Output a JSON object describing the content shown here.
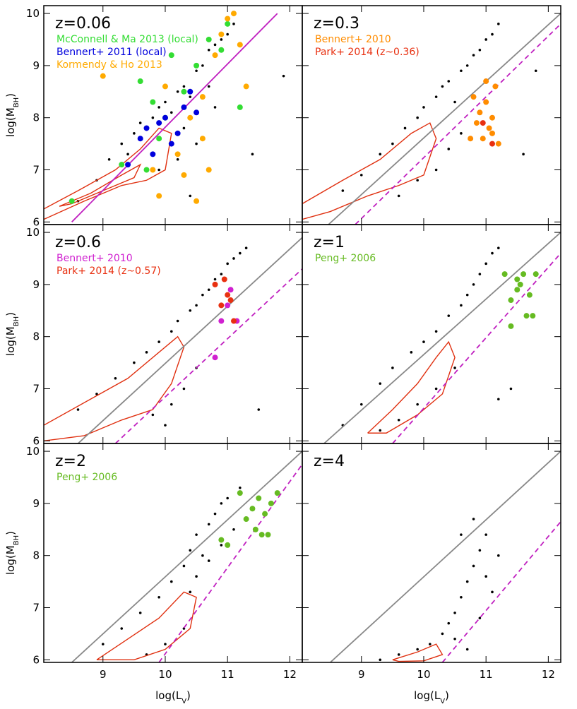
{
  "chart_data": [
    {
      "type": "scatter",
      "label": "z=0.06",
      "xlim": [
        8.05,
        12.2
      ],
      "ylim": [
        5.95,
        10.15
      ],
      "xticks": [
        9,
        10,
        11,
        12
      ],
      "yticks": [
        6,
        7,
        8,
        9,
        10
      ],
      "ylabel": [
        "log(M",
        "BH",
        ")"
      ],
      "series": [
        {
          "style": "dot",
          "color": "#000000",
          "x": [
            8.6,
            8.9,
            9.1,
            9.3,
            9.5,
            9.6,
            9.8,
            9.9,
            10.0,
            10.1,
            10.2,
            10.3,
            10.4,
            10.5,
            10.6,
            10.7,
            10.8,
            10.9,
            11.0,
            11.1,
            9.9,
            10.2,
            10.5,
            10.8,
            11.4,
            11.9,
            10.7,
            10.3,
            9.4,
            10.4
          ],
          "y": [
            6.4,
            6.8,
            7.2,
            7.5,
            7.7,
            7.9,
            8.0,
            8.2,
            8.3,
            8.1,
            8.5,
            8.6,
            8.4,
            8.9,
            9.0,
            9.3,
            9.4,
            9.5,
            9.6,
            9.8,
            7.0,
            7.2,
            7.5,
            8.2,
            7.3,
            8.8,
            8.6,
            7.8,
            7.3,
            6.5
          ]
        },
        {
          "style": "contour",
          "color": "#e03010",
          "x": [
            8.05,
            8.6,
            9.2,
            9.6,
            9.9,
            10.1,
            10.0,
            9.7,
            9.3,
            8.7,
            8.05
          ],
          "y": [
            6.25,
            6.6,
            7.0,
            7.4,
            7.8,
            7.7,
            7.0,
            6.8,
            6.7,
            6.4,
            6.05
          ]
        },
        {
          "style": "contour",
          "color": "#e03010",
          "x": [
            8.3,
            8.8,
            9.3,
            9.6,
            9.5,
            9.0,
            8.5,
            8.3
          ],
          "y": [
            6.3,
            6.55,
            6.9,
            7.1,
            6.85,
            6.6,
            6.35,
            6.3
          ]
        },
        {
          "style": "line",
          "color": "#c020c0",
          "x": [
            8.5,
            11.8
          ],
          "y": [
            6.0,
            10.0
          ]
        },
        {
          "style": "circle",
          "name": "McConnell & Ma 2013 (local)",
          "color": "#33dd33",
          "x": [
            8.5,
            9.3,
            9.6,
            9.7,
            9.8,
            10.0,
            10.1,
            10.3,
            10.5,
            10.7,
            10.9,
            11.0,
            11.2,
            9.9
          ],
          "y": [
            6.4,
            7.1,
            8.7,
            7.0,
            8.3,
            8.0,
            9.2,
            8.5,
            9.0,
            9.5,
            9.3,
            9.8,
            8.2,
            7.6
          ]
        },
        {
          "style": "circle",
          "name": "Bennert+ 2011 (local)",
          "color": "#0000dd",
          "x": [
            9.4,
            9.6,
            9.7,
            9.8,
            9.9,
            10.0,
            10.1,
            10.2,
            10.3,
            10.4,
            10.5
          ],
          "y": [
            7.1,
            7.6,
            7.8,
            7.3,
            7.9,
            8.0,
            7.5,
            7.7,
            8.2,
            8.5,
            8.1
          ]
        },
        {
          "style": "circle",
          "name": "Kormendy & Ho 2013",
          "color": "#ffaa00",
          "x": [
            9.0,
            9.8,
            10.0,
            10.2,
            10.4,
            10.6,
            10.8,
            10.9,
            11.0,
            11.1,
            11.2,
            10.5,
            10.7,
            10.3,
            9.9,
            10.6,
            11.3
          ],
          "y": [
            8.8,
            7.0,
            8.6,
            7.3,
            8.0,
            8.4,
            9.2,
            9.6,
            9.9,
            10.0,
            9.4,
            6.4,
            7.0,
            6.9,
            6.5,
            7.6,
            8.6
          ]
        }
      ]
    },
    {
      "type": "scatter",
      "label": "z=0.3",
      "xlim": [
        8.05,
        12.2
      ],
      "ylim": [
        5.95,
        10.15
      ],
      "xticks": [
        9,
        10,
        11,
        12
      ],
      "yticks": [
        6,
        7,
        8,
        9,
        10
      ],
      "series": [
        {
          "style": "dot",
          "color": "#000000",
          "x": [
            8.7,
            9.0,
            9.3,
            9.5,
            9.7,
            9.9,
            10.0,
            10.2,
            10.3,
            10.4,
            10.5,
            10.6,
            10.7,
            10.8,
            10.9,
            11.0,
            11.1,
            11.2,
            9.6,
            9.9,
            10.2,
            10.4,
            10.6,
            11.6,
            11.8,
            10.9
          ],
          "y": [
            6.6,
            6.9,
            7.3,
            7.5,
            7.8,
            8.0,
            8.2,
            8.4,
            8.6,
            8.7,
            8.3,
            8.9,
            9.0,
            9.2,
            9.3,
            9.5,
            9.6,
            9.8,
            6.5,
            6.8,
            7.0,
            7.4,
            7.7,
            7.3,
            8.9,
            8.1
          ]
        },
        {
          "style": "contour",
          "color": "#e03010",
          "x": [
            8.05,
            8.7,
            9.3,
            9.8,
            10.1,
            10.2,
            10.0,
            9.6,
            9.1,
            8.5,
            8.05
          ],
          "y": [
            6.35,
            6.8,
            7.2,
            7.7,
            7.9,
            7.6,
            6.9,
            6.7,
            6.5,
            6.2,
            6.05
          ]
        },
        {
          "style": "line",
          "color": "#888888",
          "x": [
            8.47,
            12.2
          ],
          "y": [
            5.95,
            10.0
          ]
        },
        {
          "style": "dashed",
          "color": "#c020c0",
          "x": [
            8.9,
            12.2
          ],
          "y": [
            5.95,
            9.8
          ]
        },
        {
          "style": "circle",
          "name": "Bennert+ 2010",
          "color": "#ff8c00",
          "x": [
            10.8,
            10.85,
            10.9,
            10.95,
            11.0,
            11.05,
            11.1,
            11.15,
            11.2,
            10.75,
            11.0,
            11.1
          ],
          "y": [
            8.4,
            7.9,
            8.1,
            7.6,
            8.3,
            7.8,
            8.0,
            8.6,
            7.5,
            7.6,
            8.7,
            7.7
          ]
        },
        {
          "style": "circle",
          "name": "Park+ 2014 (z~0.36)",
          "color": "#e83010",
          "x": [
            10.95,
            11.1
          ],
          "y": [
            7.9,
            7.5
          ]
        }
      ]
    },
    {
      "type": "scatter",
      "label": "z=0.6",
      "xlim": [
        8.05,
        12.2
      ],
      "ylim": [
        5.95,
        10.15
      ],
      "xticks": [
        9,
        10,
        11,
        12
      ],
      "yticks": [
        6,
        7,
        8,
        9,
        10
      ],
      "ylabel": [
        "log(M",
        "BH",
        ")"
      ],
      "series": [
        {
          "style": "dot",
          "color": "#000000",
          "x": [
            8.6,
            8.9,
            9.2,
            9.5,
            9.7,
            9.9,
            10.1,
            10.2,
            10.4,
            10.5,
            10.6,
            10.7,
            10.8,
            10.9,
            11.0,
            11.1,
            11.3,
            9.8,
            10.1,
            10.3,
            10.5,
            11.5,
            11.2,
            10.0
          ],
          "y": [
            6.6,
            6.9,
            7.2,
            7.5,
            7.7,
            7.9,
            8.1,
            8.3,
            8.5,
            8.6,
            8.8,
            8.9,
            9.1,
            9.2,
            9.4,
            9.5,
            9.7,
            6.5,
            6.7,
            7.0,
            7.4,
            6.6,
            9.6,
            6.3
          ]
        },
        {
          "style": "contour",
          "color": "#e03010",
          "x": [
            8.05,
            8.8,
            9.4,
            9.9,
            10.2,
            10.3,
            10.1,
            9.8,
            9.3,
            8.7,
            8.05
          ],
          "y": [
            6.3,
            6.8,
            7.2,
            7.7,
            8.0,
            7.8,
            7.1,
            6.6,
            6.4,
            6.1,
            6.0
          ]
        },
        {
          "style": "line",
          "color": "#888888",
          "x": [
            8.6,
            12.2
          ],
          "y": [
            5.95,
            9.9
          ]
        },
        {
          "style": "dashed",
          "color": "#c020c0",
          "x": [
            9.2,
            12.2
          ],
          "y": [
            5.95,
            9.3
          ]
        },
        {
          "style": "circle",
          "name": "Bennert+ 2010",
          "color": "#d020d0",
          "x": [
            10.9,
            11.0,
            11.05,
            11.15,
            10.8
          ],
          "y": [
            8.3,
            8.6,
            8.9,
            8.3,
            7.6
          ]
        },
        {
          "style": "circle",
          "name": "Park+ 2014 (z~0.57)",
          "color": "#e83010",
          "x": [
            10.8,
            10.9,
            11.0,
            11.1,
            10.95,
            11.05
          ],
          "y": [
            9.0,
            8.6,
            8.8,
            8.3,
            9.1,
            8.7
          ]
        }
      ]
    },
    {
      "type": "scatter",
      "label": "z=1",
      "xlim": [
        8.05,
        12.2
      ],
      "ylim": [
        5.95,
        10.15
      ],
      "xticks": [
        9,
        10,
        11,
        12
      ],
      "yticks": [
        6,
        7,
        8,
        9,
        10
      ],
      "series": [
        {
          "style": "dot",
          "color": "#000000",
          "x": [
            8.7,
            9.0,
            9.3,
            9.5,
            9.8,
            10.0,
            10.2,
            10.4,
            10.6,
            10.7,
            10.8,
            10.9,
            11.0,
            11.1,
            11.2,
            9.3,
            9.6,
            9.9,
            10.2,
            10.5,
            11.2,
            11.4
          ],
          "y": [
            6.3,
            6.7,
            7.1,
            7.4,
            7.7,
            7.9,
            8.1,
            8.4,
            8.6,
            8.8,
            9.0,
            9.2,
            9.4,
            9.6,
            9.7,
            6.2,
            6.4,
            6.7,
            7.0,
            7.4,
            6.8,
            7.0
          ]
        },
        {
          "style": "contour",
          "color": "#e03010",
          "x": [
            9.1,
            9.5,
            9.9,
            10.2,
            10.4,
            10.5,
            10.3,
            9.9,
            9.4,
            9.1
          ],
          "y": [
            6.15,
            6.6,
            7.1,
            7.6,
            7.9,
            7.6,
            6.9,
            6.5,
            6.15,
            6.15
          ]
        },
        {
          "style": "line",
          "color": "#888888",
          "x": [
            8.4,
            12.2
          ],
          "y": [
            5.95,
            10.0
          ]
        },
        {
          "style": "dashed",
          "color": "#c020c0",
          "x": [
            9.5,
            12.2
          ],
          "y": [
            5.95,
            9.6
          ]
        },
        {
          "style": "circle",
          "name": "Peng+ 2006",
          "color": "#66bb22",
          "x": [
            11.3,
            11.4,
            11.5,
            11.55,
            11.6,
            11.65,
            11.7,
            11.75,
            11.8,
            11.5,
            11.4
          ],
          "y": [
            9.2,
            8.7,
            8.9,
            9.0,
            9.2,
            8.4,
            8.8,
            8.4,
            9.2,
            9.1,
            8.2
          ]
        }
      ]
    },
    {
      "type": "scatter",
      "label": "z=2",
      "xlim": [
        8.05,
        12.2
      ],
      "ylim": [
        5.95,
        10.15
      ],
      "xticks": [
        9,
        10,
        11,
        12
      ],
      "yticks": [
        6,
        7,
        8,
        9,
        10
      ],
      "ylabel": [
        "log(M",
        "BH",
        ")"
      ],
      "xlabel": [
        "log(L",
        "V",
        ")"
      ],
      "series": [
        {
          "style": "dot",
          "color": "#000000",
          "x": [
            9.0,
            9.3,
            9.6,
            9.9,
            10.1,
            10.3,
            10.4,
            10.5,
            10.6,
            10.7,
            10.8,
            10.9,
            11.0,
            11.2,
            10.4,
            10.5,
            10.7,
            10.9,
            11.1,
            9.7,
            10.0,
            10.3
          ],
          "y": [
            6.3,
            6.6,
            6.9,
            7.2,
            7.5,
            7.8,
            8.1,
            8.4,
            8.0,
            8.6,
            8.8,
            9.0,
            9.1,
            9.3,
            7.3,
            7.6,
            7.9,
            8.2,
            8.5,
            6.1,
            6.3,
            6.6
          ]
        },
        {
          "style": "contour",
          "color": "#e03010",
          "x": [
            8.9,
            9.4,
            9.9,
            10.3,
            10.5,
            10.4,
            10.0,
            9.5,
            8.9
          ],
          "y": [
            6.0,
            6.4,
            6.8,
            7.3,
            7.2,
            6.6,
            6.2,
            6.0,
            6.0
          ]
        },
        {
          "style": "line",
          "color": "#888888",
          "x": [
            8.5,
            12.2
          ],
          "y": [
            5.95,
            10.0
          ]
        },
        {
          "style": "dashed",
          "color": "#c020c0",
          "x": [
            9.9,
            12.2
          ],
          "y": [
            5.95,
            9.75
          ]
        },
        {
          "style": "circle",
          "name": "Peng+ 2006",
          "color": "#66bb22",
          "x": [
            10.9,
            11.0,
            11.2,
            11.3,
            11.4,
            11.5,
            11.55,
            11.6,
            11.65,
            11.7,
            11.8,
            11.45
          ],
          "y": [
            8.3,
            8.2,
            9.2,
            8.7,
            8.9,
            9.1,
            8.4,
            8.8,
            8.4,
            9.0,
            9.2,
            8.5
          ]
        }
      ]
    },
    {
      "type": "scatter",
      "label": "z=4",
      "xlim": [
        8.05,
        12.2
      ],
      "ylim": [
        5.95,
        10.15
      ],
      "xticks": [
        9,
        10,
        11,
        12
      ],
      "yticks": [
        6,
        7,
        8,
        9,
        10
      ],
      "xlabel": [
        "log(L",
        "V",
        ")"
      ],
      "series": [
        {
          "style": "dot",
          "color": "#000000",
          "x": [
            9.3,
            9.6,
            9.9,
            10.1,
            10.3,
            10.4,
            10.5,
            10.6,
            10.7,
            10.8,
            10.9,
            11.0,
            11.1,
            11.2,
            10.6,
            10.8,
            11.0,
            10.5,
            10.9,
            10.7
          ],
          "y": [
            6.0,
            6.1,
            6.2,
            6.3,
            6.5,
            6.7,
            6.9,
            7.2,
            7.5,
            7.8,
            8.1,
            7.6,
            7.3,
            8.0,
            8.4,
            8.7,
            8.4,
            6.4,
            6.8,
            6.2
          ]
        },
        {
          "style": "contour",
          "color": "#e03010",
          "x": [
            9.5,
            9.9,
            10.2,
            10.3,
            10.0,
            9.6,
            9.5
          ],
          "y": [
            6.0,
            6.15,
            6.3,
            6.1,
            5.98,
            5.97,
            6.0
          ]
        },
        {
          "style": "line",
          "color": "#888888",
          "x": [
            8.5,
            12.2
          ],
          "y": [
            5.95,
            10.0
          ]
        },
        {
          "style": "dashed",
          "color": "#c020c0",
          "x": [
            10.3,
            12.2
          ],
          "y": [
            5.95,
            8.65
          ]
        }
      ]
    }
  ]
}
